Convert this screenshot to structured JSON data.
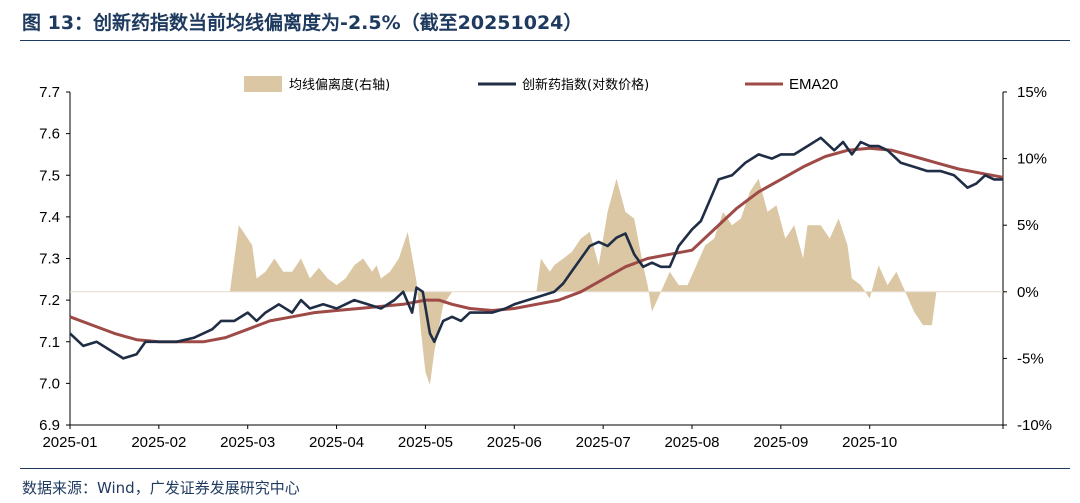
{
  "title": "图  13：创新药指数当前均线偏离度为-2.5%（截至20251024）",
  "source": "数据来源：Wind，广发证券发展研究中心",
  "chart_data": {
    "type": "line",
    "left_axis": {
      "min": 6.9,
      "max": 7.7,
      "ticks": [
        "6.9",
        "7.0",
        "7.1",
        "7.2",
        "7.3",
        "7.4",
        "7.5",
        "7.6",
        "7.7"
      ]
    },
    "right_axis": {
      "min": -10,
      "max": 15,
      "ticks": [
        "-10%",
        "-5%",
        "0%",
        "5%",
        "10%",
        "15%"
      ]
    },
    "x_axis": {
      "labels": [
        "2025-01",
        "2025-02",
        "2025-03",
        "2025-04",
        "2025-05",
        "2025-06",
        "2025-07",
        "2025-08",
        "2025-09",
        "2025-10"
      ]
    },
    "legend": [
      {
        "name": "均线偏离度(右轴)",
        "color": "#dbc7a4",
        "type": "area"
      },
      {
        "name": "创新药指数(对数价格)",
        "color": "#1f2d45",
        "type": "line"
      },
      {
        "name": "EMA20",
        "color": "#9e4a47",
        "type": "line"
      }
    ],
    "index_series": [
      [
        0.0,
        7.12
      ],
      [
        0.15,
        7.09
      ],
      [
        0.3,
        7.1
      ],
      [
        0.45,
        7.08
      ],
      [
        0.6,
        7.06
      ],
      [
        0.75,
        7.07
      ],
      [
        0.85,
        7.1
      ],
      [
        1.0,
        7.1
      ],
      [
        1.2,
        7.1
      ],
      [
        1.4,
        7.11
      ],
      [
        1.6,
        7.13
      ],
      [
        1.7,
        7.15
      ],
      [
        1.85,
        7.15
      ],
      [
        2.0,
        7.17
      ],
      [
        2.1,
        7.15
      ],
      [
        2.2,
        7.17
      ],
      [
        2.35,
        7.19
      ],
      [
        2.5,
        7.17
      ],
      [
        2.6,
        7.2
      ],
      [
        2.7,
        7.18
      ],
      [
        2.85,
        7.19
      ],
      [
        3.0,
        7.18
      ],
      [
        3.1,
        7.19
      ],
      [
        3.2,
        7.2
      ],
      [
        3.35,
        7.19
      ],
      [
        3.5,
        7.18
      ],
      [
        3.65,
        7.2
      ],
      [
        3.75,
        7.22
      ],
      [
        3.85,
        7.17
      ],
      [
        3.9,
        7.23
      ],
      [
        3.97,
        7.22
      ],
      [
        4.05,
        7.12
      ],
      [
        4.1,
        7.1
      ],
      [
        4.2,
        7.15
      ],
      [
        4.3,
        7.16
      ],
      [
        4.4,
        7.15
      ],
      [
        4.5,
        7.17
      ],
      [
        4.6,
        7.17
      ],
      [
        4.75,
        7.17
      ],
      [
        4.9,
        7.18
      ],
      [
        5.0,
        7.19
      ],
      [
        5.15,
        7.2
      ],
      [
        5.3,
        7.21
      ],
      [
        5.45,
        7.22
      ],
      [
        5.55,
        7.24
      ],
      [
        5.65,
        7.27
      ],
      [
        5.75,
        7.3
      ],
      [
        5.85,
        7.33
      ],
      [
        5.95,
        7.34
      ],
      [
        6.05,
        7.33
      ],
      [
        6.15,
        7.35
      ],
      [
        6.25,
        7.36
      ],
      [
        6.35,
        7.31
      ],
      [
        6.45,
        7.28
      ],
      [
        6.55,
        7.29
      ],
      [
        6.65,
        7.28
      ],
      [
        6.75,
        7.28
      ],
      [
        6.85,
        7.33
      ],
      [
        7.0,
        7.37
      ],
      [
        7.1,
        7.39
      ],
      [
        7.2,
        7.44
      ],
      [
        7.3,
        7.49
      ],
      [
        7.45,
        7.5
      ],
      [
        7.6,
        7.53
      ],
      [
        7.75,
        7.55
      ],
      [
        7.9,
        7.54
      ],
      [
        8.0,
        7.55
      ],
      [
        8.15,
        7.55
      ],
      [
        8.3,
        7.57
      ],
      [
        8.45,
        7.59
      ],
      [
        8.6,
        7.56
      ],
      [
        8.7,
        7.58
      ],
      [
        8.8,
        7.55
      ],
      [
        8.9,
        7.58
      ],
      [
        9.0,
        7.57
      ],
      [
        9.1,
        7.57
      ],
      [
        9.2,
        7.56
      ],
      [
        9.35,
        7.53
      ],
      [
        9.5,
        7.52
      ],
      [
        9.65,
        7.51
      ],
      [
        9.8,
        7.51
      ],
      [
        9.95,
        7.5
      ],
      [
        10.0,
        7.49
      ],
      [
        10.1,
        7.47
      ],
      [
        10.2,
        7.48
      ],
      [
        10.3,
        7.5
      ],
      [
        10.4,
        7.49
      ],
      [
        10.5,
        7.49
      ]
    ],
    "ema20_series": [
      [
        0.0,
        7.16
      ],
      [
        0.25,
        7.14
      ],
      [
        0.5,
        7.12
      ],
      [
        0.75,
        7.105
      ],
      [
        1.0,
        7.1
      ],
      [
        1.25,
        7.1
      ],
      [
        1.5,
        7.1
      ],
      [
        1.75,
        7.11
      ],
      [
        2.0,
        7.13
      ],
      [
        2.25,
        7.15
      ],
      [
        2.5,
        7.16
      ],
      [
        2.75,
        7.17
      ],
      [
        3.0,
        7.175
      ],
      [
        3.25,
        7.18
      ],
      [
        3.5,
        7.185
      ],
      [
        3.75,
        7.19
      ],
      [
        4.0,
        7.2
      ],
      [
        4.15,
        7.2
      ],
      [
        4.3,
        7.19
      ],
      [
        4.5,
        7.18
      ],
      [
        4.75,
        7.175
      ],
      [
        5.0,
        7.18
      ],
      [
        5.25,
        7.19
      ],
      [
        5.5,
        7.2
      ],
      [
        5.75,
        7.22
      ],
      [
        6.0,
        7.25
      ],
      [
        6.25,
        7.28
      ],
      [
        6.5,
        7.3
      ],
      [
        6.75,
        7.31
      ],
      [
        7.0,
        7.32
      ],
      [
        7.25,
        7.37
      ],
      [
        7.5,
        7.42
      ],
      [
        7.75,
        7.46
      ],
      [
        8.0,
        7.49
      ],
      [
        8.25,
        7.52
      ],
      [
        8.5,
        7.545
      ],
      [
        8.75,
        7.56
      ],
      [
        9.0,
        7.565
      ],
      [
        9.25,
        7.56
      ],
      [
        9.5,
        7.545
      ],
      [
        9.75,
        7.53
      ],
      [
        10.0,
        7.515
      ],
      [
        10.25,
        7.505
      ],
      [
        10.5,
        7.495
      ]
    ],
    "deviation_series": [
      [
        1.8,
        0
      ],
      [
        1.85,
        2.5
      ],
      [
        1.9,
        5.0
      ],
      [
        1.95,
        4.5
      ],
      [
        2.05,
        3.5
      ],
      [
        2.1,
        1.0
      ],
      [
        2.2,
        1.5
      ],
      [
        2.3,
        2.5
      ],
      [
        2.4,
        1.5
      ],
      [
        2.5,
        1.5
      ],
      [
        2.6,
        2.5
      ],
      [
        2.7,
        1.0
      ],
      [
        2.8,
        1.8
      ],
      [
        2.9,
        1.0
      ],
      [
        3.0,
        0.5
      ],
      [
        3.1,
        1.0
      ],
      [
        3.2,
        2.0
      ],
      [
        3.3,
        2.5
      ],
      [
        3.4,
        1.5
      ],
      [
        3.45,
        2.0
      ],
      [
        3.5,
        1.0
      ],
      [
        3.6,
        1.5
      ],
      [
        3.7,
        2.5
      ],
      [
        3.8,
        4.5
      ],
      [
        3.9,
        0.8
      ],
      [
        3.95,
        -3.0
      ],
      [
        4.0,
        -6.0
      ],
      [
        4.05,
        -7.0
      ],
      [
        4.1,
        -4.5
      ],
      [
        4.2,
        -1.0
      ],
      [
        4.3,
        0
      ],
      [
        5.25,
        0
      ],
      [
        5.3,
        2.5
      ],
      [
        5.4,
        1.5
      ],
      [
        5.45,
        2.0
      ],
      [
        5.55,
        2.5
      ],
      [
        5.65,
        3.0
      ],
      [
        5.75,
        4.0
      ],
      [
        5.85,
        4.5
      ],
      [
        5.95,
        2.0
      ],
      [
        6.05,
        6.0
      ],
      [
        6.15,
        8.5
      ],
      [
        6.25,
        6.0
      ],
      [
        6.35,
        5.5
      ],
      [
        6.45,
        2.0
      ],
      [
        6.5,
        0.5
      ],
      [
        6.55,
        -1.5
      ],
      [
        6.65,
        0
      ],
      [
        6.75,
        1.5
      ],
      [
        6.85,
        0.5
      ],
      [
        6.95,
        0.5
      ],
      [
        7.05,
        2.0
      ],
      [
        7.15,
        3.5
      ],
      [
        7.25,
        4.0
      ],
      [
        7.35,
        6.0
      ],
      [
        7.45,
        5.0
      ],
      [
        7.55,
        5.5
      ],
      [
        7.65,
        7.5
      ],
      [
        7.75,
        8.5
      ],
      [
        7.85,
        6.0
      ],
      [
        7.95,
        6.5
      ],
      [
        8.05,
        4.0
      ],
      [
        8.15,
        5.0
      ],
      [
        8.25,
        2.5
      ],
      [
        8.3,
        5.0
      ],
      [
        8.45,
        5.0
      ],
      [
        8.55,
        4.0
      ],
      [
        8.65,
        5.5
      ],
      [
        8.75,
        3.5
      ],
      [
        8.8,
        1.0
      ],
      [
        8.9,
        0.5
      ],
      [
        9.0,
        -0.5
      ],
      [
        9.1,
        2.0
      ],
      [
        9.2,
        0.5
      ],
      [
        9.3,
        1.5
      ],
      [
        9.4,
        0
      ],
      [
        9.5,
        -1.5
      ],
      [
        9.6,
        -2.5
      ],
      [
        9.7,
        -2.5
      ],
      [
        9.75,
        0
      ]
    ]
  }
}
